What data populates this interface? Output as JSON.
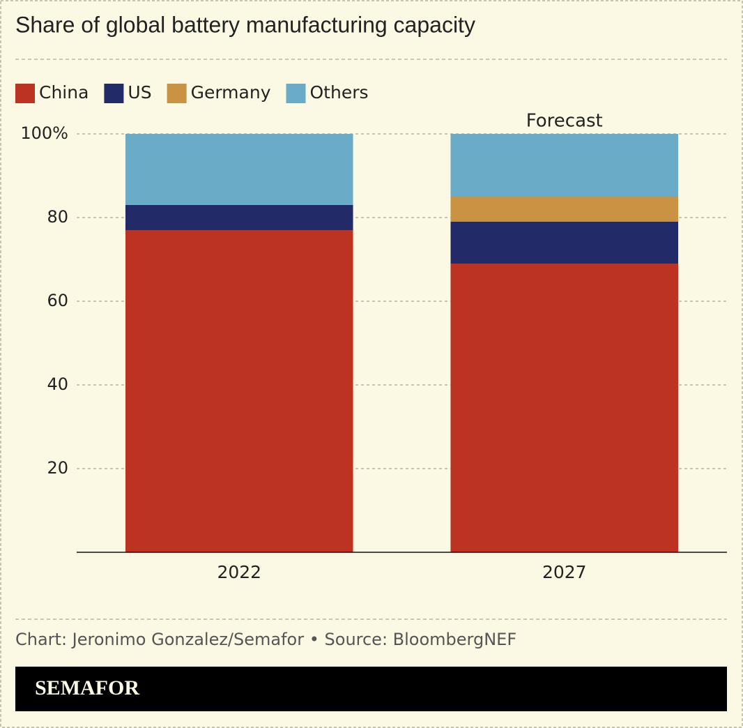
{
  "chart_data": {
    "type": "stacked-bar",
    "title": "Share of global battery manufacturing capacity",
    "categories": [
      "2022",
      "2027"
    ],
    "series": [
      {
        "name": "China",
        "color": "#bc3421",
        "values": [
          77,
          69
        ]
      },
      {
        "name": "US",
        "color": "#222a68",
        "values": [
          6,
          10
        ]
      },
      {
        "name": "Germany",
        "color": "#c99343",
        "values": [
          0,
          6
        ]
      },
      {
        "name": "Others",
        "color": "#6aabc8",
        "values": [
          17,
          15
        ]
      }
    ],
    "ylim": [
      0,
      100
    ],
    "yticks": [
      20,
      40,
      60,
      80,
      {
        "value": 100,
        "label": "100%"
      }
    ],
    "grid": true,
    "legend": "top-left",
    "annotations": [
      {
        "text": "Forecast",
        "category": "2027"
      }
    ]
  },
  "footer": {
    "credit": "Chart: Jeronimo Gonzalez/Semafor • Source: BloombergNEF",
    "logo": "SEMAFOR"
  }
}
